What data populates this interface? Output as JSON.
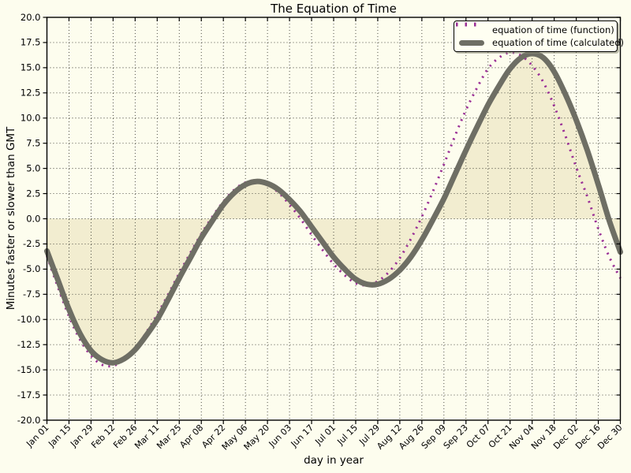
{
  "chart_data": {
    "type": "line",
    "title": "The Equation of Time",
    "xlabel": "day in year",
    "ylabel": "Minutes faster or slower than GMT",
    "xlim": [
      1,
      365
    ],
    "ylim": [
      -20,
      20
    ],
    "grid": true,
    "grid_style": "dotted",
    "legend_position": "upper right",
    "background_color": "#fdfdee",
    "frame_color": "#000000",
    "grid_color": "#3b3b33",
    "y_tick_labels": [
      "20.0",
      "17.5",
      "15.0",
      "12.5",
      "10.0",
      "7.5",
      "5.0",
      "2.5",
      "0.0",
      "-2.5",
      "-5.0",
      "-7.5",
      "-10.0",
      "-12.5",
      "-15.0",
      "-17.5",
      "-20.0"
    ],
    "x_tick_days": [
      1,
      15,
      29,
      43,
      57,
      71,
      85,
      99,
      113,
      127,
      141,
      155,
      169,
      183,
      197,
      211,
      225,
      239,
      253,
      267,
      281,
      295,
      309,
      323,
      337,
      351,
      365
    ],
    "x_tick_labels": [
      "Jan 01",
      "Jan 15",
      "Jan 29",
      "Feb 12",
      "Feb 26",
      "Mar 11",
      "Mar 25",
      "Apr 08",
      "Apr 22",
      "May 06",
      "May 20",
      "Jun 03",
      "Jun 17",
      "Jul 01",
      "Jul 15",
      "Jul 29",
      "Aug 12",
      "Aug 26",
      "Sep 09",
      "Sep 23",
      "Oct 07",
      "Oct 21",
      "Nov 04",
      "Nov 18",
      "Dec 02",
      "Dec 16",
      "Dec 30"
    ],
    "x": [
      1,
      8,
      15,
      22,
      29,
      36,
      43,
      50,
      57,
      64,
      71,
      78,
      85,
      92,
      99,
      106,
      113,
      120,
      127,
      134,
      141,
      148,
      155,
      162,
      169,
      176,
      183,
      190,
      197,
      204,
      211,
      218,
      225,
      232,
      239,
      246,
      253,
      260,
      267,
      274,
      281,
      288,
      295,
      302,
      309,
      316,
      323,
      330,
      337,
      344,
      351,
      358,
      365
    ],
    "series": [
      {
        "name": "equation of time (function)",
        "color": "#9a2f96",
        "line_style": "dotted",
        "line_width": 3,
        "values": [
          -3.7,
          -6.8,
          -9.7,
          -12.0,
          -13.6,
          -14.5,
          -14.6,
          -14.0,
          -12.9,
          -11.3,
          -9.5,
          -7.5,
          -5.4,
          -3.4,
          -1.5,
          0.2,
          1.7,
          2.9,
          3.6,
          3.8,
          3.4,
          2.6,
          1.4,
          0.0,
          -1.6,
          -3.1,
          -4.5,
          -5.6,
          -6.4,
          -6.6,
          -6.2,
          -5.3,
          -3.9,
          -2.0,
          0.2,
          2.7,
          5.4,
          8.2,
          10.8,
          13.0,
          14.9,
          16.0,
          16.5,
          16.2,
          15.2,
          13.6,
          11.2,
          8.3,
          5.1,
          2.2,
          -1.0,
          -3.8,
          -5.9
        ]
      },
      {
        "name": "equation of time (calculated)",
        "color": "#6e6e64",
        "line_style": "solid",
        "line_width": 7,
        "fill_to_zero": true,
        "fill_color": "#f2edd0",
        "values": [
          -3.2,
          -6.1,
          -9.0,
          -11.4,
          -13.1,
          -14.0,
          -14.3,
          -13.9,
          -13.0,
          -11.6,
          -10.0,
          -8.0,
          -5.9,
          -3.9,
          -1.9,
          -0.2,
          1.4,
          2.6,
          3.4,
          3.7,
          3.5,
          2.9,
          1.9,
          0.7,
          -0.8,
          -2.3,
          -3.8,
          -5.0,
          -6.0,
          -6.5,
          -6.5,
          -6.0,
          -5.1,
          -3.8,
          -2.1,
          -0.1,
          2.0,
          4.4,
          6.8,
          9.1,
          11.3,
          13.2,
          14.9,
          16.0,
          16.4,
          16.0,
          14.6,
          12.4,
          9.8,
          6.8,
          3.4,
          -0.2,
          -3.3
        ]
      }
    ]
  },
  "legend": {
    "entries": [
      {
        "label": "equation of time (function)"
      },
      {
        "label": "equation of time (calculated)"
      }
    ]
  }
}
